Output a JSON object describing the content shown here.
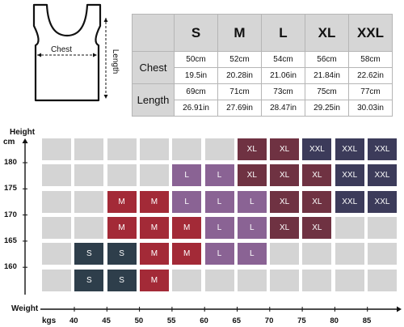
{
  "diagram": {
    "chest_label": "Chest",
    "length_label": "Length"
  },
  "table": {
    "sizes": [
      "S",
      "M",
      "L",
      "XL",
      "XXL"
    ],
    "rows": [
      {
        "label": "Chest",
        "cm": [
          "50cm",
          "52cm",
          "54cm",
          "56cm",
          "58cm"
        ],
        "in": [
          "19.5in",
          "20.28in",
          "21.06in",
          "21.84in",
          "22.62in"
        ]
      },
      {
        "label": "Length",
        "cm": [
          "69cm",
          "71cm",
          "73cm",
          "75cm",
          "77cm"
        ],
        "in": [
          "26.91in",
          "27.69in",
          "28.47in",
          "29.25in",
          "30.03in"
        ]
      }
    ]
  },
  "chart": {
    "height_title": "Height",
    "height_unit": "cm",
    "weight_title": "Weight",
    "weight_unit": "kgs",
    "height_ticks": [
      "180",
      "175",
      "170",
      "165",
      "160"
    ],
    "weight_ticks": [
      "40",
      "45",
      "50",
      "55",
      "60",
      "65",
      "70",
      "75",
      "80",
      "85"
    ],
    "colors": {
      "S": "#2e3e4b",
      "M": "#a32a37",
      "L": "#8a6394",
      "XL": "#6f3242",
      "XXL": "#3c3b5a",
      "empty": "#d4d4d4"
    },
    "rows": [
      [
        "",
        "",
        "",
        "",
        "",
        "",
        "XL",
        "XL",
        "XXL",
        "XXL",
        "XXL"
      ],
      [
        "",
        "",
        "",
        "",
        "L",
        "L",
        "XL",
        "XL",
        "XL",
        "XXL",
        "XXL"
      ],
      [
        "",
        "",
        "M",
        "M",
        "L",
        "L",
        "L",
        "XL",
        "XL",
        "XXL",
        "XXL"
      ],
      [
        "",
        "",
        "M",
        "M",
        "M",
        "L",
        "L",
        "XL",
        "XL",
        "",
        ""
      ],
      [
        "",
        "S",
        "S",
        "M",
        "M",
        "L",
        "L",
        "",
        "",
        "",
        ""
      ],
      [
        "",
        "S",
        "S",
        "M",
        "",
        "",
        "",
        "",
        "",
        "",
        ""
      ]
    ]
  }
}
